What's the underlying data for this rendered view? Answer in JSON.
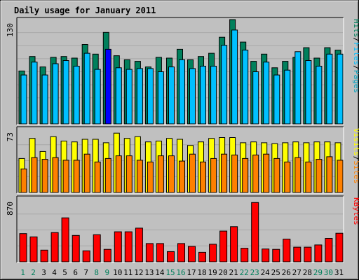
{
  "chart_data": {
    "type": "bar",
    "title": "Daily usage for January 2011",
    "x": [
      "1",
      "2",
      "3",
      "4",
      "5",
      "6",
      "7",
      "8",
      "9",
      "10",
      "11",
      "12",
      "13",
      "14",
      "15",
      "16",
      "17",
      "18",
      "19",
      "20",
      "21",
      "22",
      "23",
      "24",
      "25",
      "26",
      "27",
      "28",
      "29",
      "30",
      "31"
    ],
    "weekend_days": [
      "1",
      "2",
      "8",
      "9",
      "15",
      "16",
      "22",
      "23",
      "29",
      "30"
    ],
    "highlight_day": "9",
    "colors": {
      "background": "#C0C0C0",
      "title": "#0000CC",
      "hits": "#00805C",
      "files": "#00C0FF",
      "pages": "#00A0C0",
      "highlight": "#0000FF",
      "visits": "#FFFF00",
      "sites": "#FF8000",
      "kbytes": "#FF0000",
      "weekend_label": "#00805C",
      "weekday_label": "#000000"
    },
    "panels": [
      {
        "id": "hits-files-pages",
        "axis_max_label": "130",
        "ylim": [
          0,
          130
        ],
        "legend": [
          {
            "text": "Pages",
            "color": "#00A0C0"
          },
          {
            "text": "/",
            "color": "#000000"
          },
          {
            "text": "Files",
            "color": "#00C0FF"
          },
          {
            "text": "/",
            "color": "#000000"
          },
          {
            "text": "Hits",
            "color": "#00805C"
          }
        ],
        "series": [
          {
            "name": "Hits",
            "color": "#00805C",
            "values": [
              66,
              84,
              71,
              83,
              84,
              82,
              99,
              87,
              114,
              85,
              80,
              78,
              71,
              83,
              82,
              93,
              80,
              84,
              88,
              108,
              130,
              102,
              78,
              87,
              70,
              78,
              83,
              95,
              82,
              95,
              92
            ]
          },
          {
            "name": "Files",
            "color": "#00C0FF",
            "values": [
              61,
              77,
              61,
              75,
              79,
              72,
              88,
              68,
              93,
              70,
              68,
              69,
              69,
              65,
              71,
              80,
              69,
              72,
              72,
              98,
              117,
              92,
              65,
              77,
              61,
              67,
              90,
              79,
              72,
              87,
              87
            ]
          }
        ]
      },
      {
        "id": "visits-sites",
        "axis_max_label": "73",
        "ylim": [
          0,
          73
        ],
        "legend": [
          {
            "text": "Sites",
            "color": "#FF8000"
          },
          {
            "text": "/",
            "color": "#000000"
          },
          {
            "text": "Visits",
            "color": "#FFFF00"
          }
        ],
        "series": [
          {
            "name": "Visits",
            "color": "#FFFF00",
            "values": [
              39,
              62,
              47,
              64,
              59,
              58,
              61,
              61,
              57,
              68,
              62,
              64,
              58,
              59,
              62,
              61,
              54,
              58,
              62,
              63,
              63,
              57,
              58,
              57,
              56,
              57,
              58,
              57,
              58,
              58,
              57
            ]
          },
          {
            "name": "Sites",
            "color": "#FF8000",
            "values": [
              27,
              40,
              38,
              40,
              37,
              37,
              44,
              35,
              39,
              42,
              42,
              37,
              35,
              42,
              42,
              36,
              44,
              35,
              39,
              44,
              43,
              39,
              43,
              44,
              39,
              35,
              40,
              35,
              38,
              41,
              37
            ]
          }
        ]
      },
      {
        "id": "kbytes",
        "axis_max_label": "870",
        "ylim": [
          0,
          870
        ],
        "legend": [
          {
            "text": "KBytes",
            "color": "#FF0000"
          }
        ],
        "series": [
          {
            "name": "KBytes",
            "color": "#FF0000",
            "values": [
              385,
              340,
              160,
              400,
              600,
              360,
              150,
              370,
              170,
              410,
              410,
              460,
              250,
              250,
              140,
              250,
              210,
              130,
              240,
              420,
              480,
              185,
              810,
              175,
              170,
              310,
              200,
              200,
              230,
              320,
              390
            ]
          }
        ]
      }
    ]
  }
}
